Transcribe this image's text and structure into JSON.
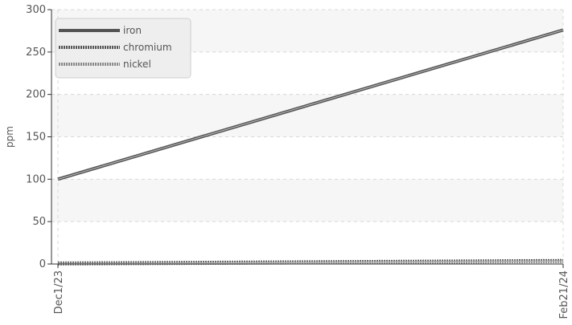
{
  "chart_data": {
    "type": "line",
    "title": "",
    "xlabel": "",
    "ylabel": "ppm",
    "x": [
      "Dec1/23",
      "Feb21/24"
    ],
    "xlim": [
      "Dec1/23",
      "Feb21/24"
    ],
    "ylim": [
      0,
      300
    ],
    "yticks": [
      0,
      50,
      100,
      150,
      200,
      250,
      300
    ],
    "grid": true,
    "legend_position": "top-left",
    "series": [
      {
        "name": "iron",
        "values": [
          100,
          276
        ],
        "color": "#555555",
        "style": "solid"
      },
      {
        "name": "chromium",
        "values": [
          1,
          4
        ],
        "color": "#555555",
        "style": "dotted"
      },
      {
        "name": "nickel",
        "values": [
          0,
          3
        ],
        "color": "#8a8a8a",
        "style": "dotted"
      }
    ],
    "colors": {
      "band": "#f6f6f6",
      "grid": "#d8d8d8",
      "axis": "#333333",
      "text": "#555555"
    }
  }
}
